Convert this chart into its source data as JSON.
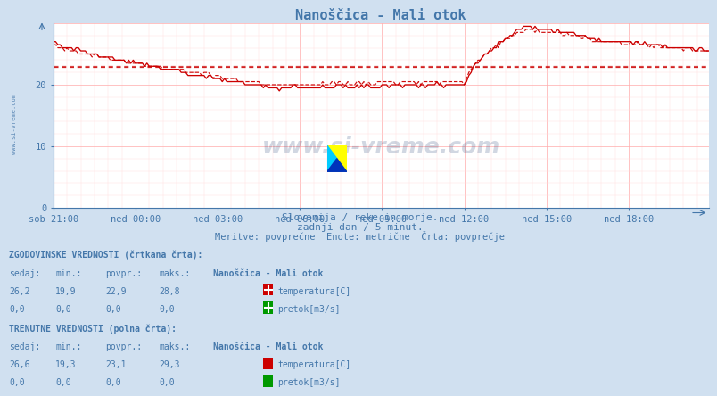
{
  "title": "Nanoščica - Mali otok",
  "bg_color": "#d0e0f0",
  "plot_bg_color": "#ffffff",
  "grid_major_color": "#ffaaaa",
  "grid_minor_color": "#ffdddd",
  "line_color": "#cc0000",
  "axis_color": "#4477aa",
  "text_color": "#4477aa",
  "xlabel_ticks": [
    "sob 21:00",
    "ned 00:00",
    "ned 03:00",
    "ned 06:00",
    "ned 09:00",
    "ned 12:00",
    "ned 15:00",
    "ned 18:00"
  ],
  "ylim": [
    0,
    30
  ],
  "yticks": [
    0,
    10,
    20
  ],
  "subtitle1": "Slovenija / reke in morje.",
  "subtitle2": "zadnji dan / 5 minut.",
  "subtitle3": "Meritve: povprečne  Enote: metrične  Črta: povprečje",
  "hist_label": "ZGODOVINSKE VREDNOSTI (črtkana črta):",
  "curr_label": "TRENUTNE VREDNOSTI (polna črta):",
  "col_headers": [
    "sedaj:",
    "min.:",
    "povpr.:",
    "maks.:"
  ],
  "station_name": "Nanoščica - Mali otok",
  "hist_temp": [
    26.2,
    19.9,
    22.9,
    28.8
  ],
  "curr_temp": [
    26.6,
    19.3,
    23.1,
    29.3
  ],
  "temp_color_hist": "#cc0000",
  "pretok_color_hist": "#009900",
  "temp_color_curr": "#cc0000",
  "pretok_color_curr": "#009900",
  "hist_avg": 22.9,
  "curr_avg": 23.1,
  "n_points": 288
}
